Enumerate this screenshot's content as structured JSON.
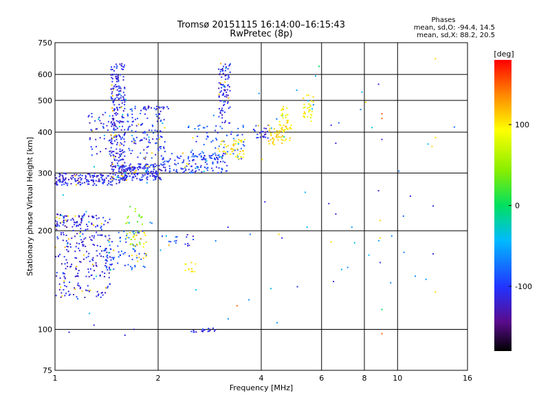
{
  "chart_data": {
    "type": "scatter",
    "title": "Tromsø 20151115  16:14:00–16:15:43",
    "subtitle": "RwPretec (8p)",
    "xlabel": "Frequency [MHz]",
    "ylabel": "Stationary phase Virtual Height [km]",
    "x_scale": "log",
    "y_scale": "log",
    "xlim": [
      1,
      16
    ],
    "ylim": [
      75,
      750
    ],
    "x_ticks": [
      1,
      2,
      4,
      6,
      8,
      10,
      16
    ],
    "x_tick_labels": [
      "1",
      "2",
      "4",
      "6",
      "8",
      "10",
      "16"
    ],
    "y_ticks": [
      75,
      100,
      200,
      300,
      400,
      500,
      600,
      750
    ],
    "y_tick_labels": [
      "75",
      "100",
      "200",
      "300",
      "400",
      "500",
      "600",
      "750"
    ],
    "grid": true,
    "phase_info": {
      "title": "Phases",
      "line_o": "mean, sd,O: -94.4, 14.5",
      "line_x": "mean, sd,X:  88.2, 20.5"
    },
    "colorbar": {
      "label": "[deg]",
      "range": [
        -180,
        180
      ],
      "tick_values": [
        100,
        0,
        -100
      ],
      "tick_labels": [
        "100",
        "0",
        "-100"
      ]
    },
    "clusters": [
      {
        "x": [
          1.0,
          1.55
        ],
        "y": [
          275,
          300
        ],
        "phase": -110,
        "count": 160
      },
      {
        "x": [
          1.55,
          2.05
        ],
        "y": [
          285,
          320
        ],
        "phase": -105,
        "count": 180
      },
      {
        "x": [
          2.05,
          3.2
        ],
        "y": [
          300,
          345
        ],
        "phase": -100,
        "count": 140
      },
      {
        "x": [
          1.45,
          1.6
        ],
        "y": [
          300,
          650
        ],
        "phase": -110,
        "count": 260
      },
      {
        "x": [
          1.6,
          2.1
        ],
        "y": [
          330,
          480
        ],
        "phase": -100,
        "count": 120
      },
      {
        "x": [
          1.25,
          1.45
        ],
        "y": [
          340,
          460
        ],
        "phase": -110,
        "count": 40
      },
      {
        "x": [
          1.8,
          2.15
        ],
        "y": [
          470,
          480
        ],
        "phase": -110,
        "count": 18
      },
      {
        "x": [
          3.0,
          3.25
        ],
        "y": [
          420,
          650
        ],
        "phase": -110,
        "count": 90
      },
      {
        "x": [
          2.4,
          3.6
        ],
        "y": [
          330,
          420
        ],
        "phase": -90,
        "count": 70
      },
      {
        "x": [
          3.0,
          3.6
        ],
        "y": [
          330,
          380
        ],
        "phase": 100,
        "count": 45
      },
      {
        "x": [
          3.8,
          4.2
        ],
        "y": [
          380,
          420
        ],
        "phase": -110,
        "count": 25
      },
      {
        "x": [
          4.2,
          4.9
        ],
        "y": [
          365,
          420
        ],
        "phase": 110,
        "count": 55
      },
      {
        "x": [
          4.5,
          4.8
        ],
        "y": [
          400,
          480
        ],
        "phase": 100,
        "count": 30
      },
      {
        "x": [
          5.3,
          5.7
        ],
        "y": [
          430,
          520
        ],
        "phase": 95,
        "count": 30
      },
      {
        "x": [
          1.0,
          1.45
        ],
        "y": [
          125,
          225
        ],
        "phase": -110,
        "count": 260
      },
      {
        "x": [
          1.0,
          1.3
        ],
        "y": [
          205,
          225
        ],
        "phase": -115,
        "count": 40
      },
      {
        "x": [
          1.4,
          1.85
        ],
        "y": [
          150,
          200
        ],
        "phase": -90,
        "count": 80
      },
      {
        "x": [
          1.6,
          1.8
        ],
        "y": [
          180,
          240
        ],
        "phase": 40,
        "count": 25
      },
      {
        "x": [
          1.65,
          1.85
        ],
        "y": [
          160,
          200
        ],
        "phase": 110,
        "count": 20
      },
      {
        "x": [
          2.5,
          2.95
        ],
        "y": [
          98,
          101
        ],
        "phase": -110,
        "count": 20
      },
      {
        "x": [
          2.4,
          2.6
        ],
        "y": [
          150,
          160
        ],
        "phase": 110,
        "count": 12
      },
      {
        "x": [
          2.05,
          2.3
        ],
        "y": [
          175,
          195
        ],
        "phase": -90,
        "count": 10
      },
      {
        "x": [
          2.4,
          2.55
        ],
        "y": [
          180,
          195
        ],
        "phase": -110,
        "count": 8
      },
      {
        "x": [
          1.0,
          16.0
        ],
        "y": [
          100,
          650
        ],
        "phase": -60,
        "count": 60
      }
    ],
    "points": [
      {
        "x": 9.0,
        "y": 440,
        "phase": 150
      },
      {
        "x": 9.0,
        "y": 455,
        "phase": 160
      },
      {
        "x": 8.8,
        "y": 560,
        "phase": -110
      },
      {
        "x": 9.0,
        "y": 380,
        "phase": -110
      },
      {
        "x": 6.6,
        "y": 370,
        "phase": -110
      },
      {
        "x": 6.4,
        "y": 420,
        "phase": -110
      },
      {
        "x": 8.8,
        "y": 265,
        "phase": -110
      },
      {
        "x": 10.9,
        "y": 255,
        "phase": -110
      },
      {
        "x": 12.7,
        "y": 238,
        "phase": -110
      },
      {
        "x": 12.7,
        "y": 170,
        "phase": -110
      },
      {
        "x": 12.9,
        "y": 130,
        "phase": 110
      },
      {
        "x": 12.9,
        "y": 385,
        "phase": 110
      },
      {
        "x": 12.9,
        "y": 670,
        "phase": 110
      },
      {
        "x": 8.9,
        "y": 215,
        "phase": 110
      },
      {
        "x": 8.9,
        "y": 190,
        "phase": 110
      },
      {
        "x": 8.9,
        "y": 160,
        "phase": -110
      },
      {
        "x": 9.0,
        "y": 115,
        "phase": 0
      },
      {
        "x": 9.0,
        "y": 97,
        "phase": 150
      },
      {
        "x": 6.4,
        "y": 185,
        "phase": 110
      },
      {
        "x": 6.5,
        "y": 140,
        "phase": -110
      },
      {
        "x": 6.3,
        "y": 242,
        "phase": -110
      },
      {
        "x": 6.6,
        "y": 225,
        "phase": -110
      },
      {
        "x": 5.1,
        "y": 135,
        "phase": -110
      },
      {
        "x": 4.5,
        "y": 195,
        "phase": 110
      },
      {
        "x": 4.6,
        "y": 190,
        "phase": -110
      },
      {
        "x": 4.1,
        "y": 245,
        "phase": -110
      },
      {
        "x": 3.4,
        "y": 118,
        "phase": 150
      },
      {
        "x": 3.2,
        "y": 205,
        "phase": -110
      },
      {
        "x": 1.6,
        "y": 96,
        "phase": -110
      },
      {
        "x": 1.7,
        "y": 100,
        "phase": -110
      },
      {
        "x": 1.3,
        "y": 103,
        "phase": -110
      },
      {
        "x": 1.1,
        "y": 98,
        "phase": -110
      },
      {
        "x": 5.9,
        "y": 635,
        "phase": 0
      }
    ]
  }
}
